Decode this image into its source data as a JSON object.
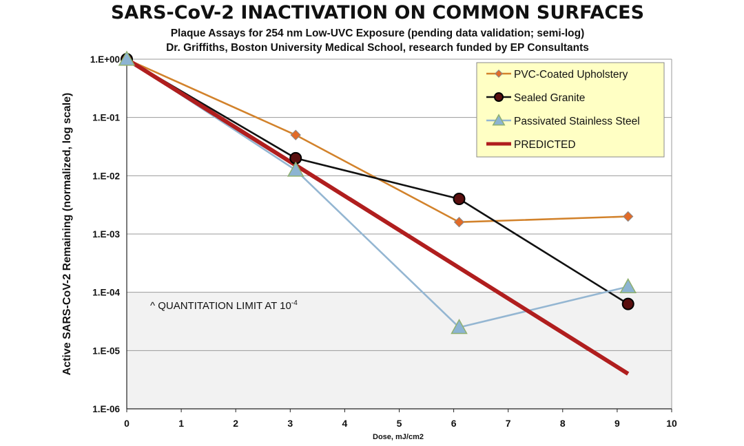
{
  "chart_data": {
    "type": "line",
    "title": "SARS-CoV-2 INACTIVATION ON COMMON SURFACES",
    "subtitle_lines": [
      "Plaque Assays for 254 nm Low-UVC Exposure (pending data validation; semi-log)",
      "Dr. Griffiths, Boston University Medical School, research funded by EP Consultants"
    ],
    "xlabel": "Dose, mJ/cm2",
    "ylabel": "Active SARS-CoV-2 Remaining (normalized, log scale)",
    "xlim": [
      0,
      10
    ],
    "ylim": [
      1e-06,
      1
    ],
    "yscale": "log",
    "grid": "horizontal",
    "legend_position": "top-right",
    "x_ticks": [
      "0",
      "1",
      "2",
      "3",
      "4",
      "5",
      "6",
      "7",
      "8",
      "9",
      "10"
    ],
    "y_ticks": [
      "1.E+00",
      "1.E-01",
      "1.E-02",
      "1.E-03",
      "1.E-04",
      "1.E-05",
      "1.E-06"
    ],
    "series": [
      {
        "name": "PVC-Coated Upholstery",
        "color": "#D2822B",
        "marker": "diamond",
        "marker_color": "#E26B28",
        "x": [
          0,
          3.1,
          6.1,
          9.2
        ],
        "y": [
          1,
          0.05,
          0.0016,
          0.002
        ]
      },
      {
        "name": "Sealed Granite",
        "color": "#111111",
        "marker": "circle",
        "marker_color": "#5A0F0F",
        "x": [
          0,
          3.1,
          6.1,
          9.2
        ],
        "y": [
          1,
          0.02,
          0.004,
          6.3e-05
        ]
      },
      {
        "name": "Passivated Stainless Steel",
        "color": "#94B6D2",
        "marker": "triangle",
        "marker_color": "#8CB4D2",
        "x": [
          0,
          3.1,
          6.1,
          9.2
        ],
        "y": [
          1,
          0.0125,
          2.5e-05,
          0.000125
        ]
      },
      {
        "name": "PREDICTED",
        "color": "#B01E1E",
        "marker": "none",
        "x": [
          0,
          9.2
        ],
        "y": [
          1,
          4e-06
        ]
      }
    ],
    "shaded_region": {
      "y_from": 1e-06,
      "y_to": 0.0001,
      "color": "#F2F2F2"
    },
    "annotation": {
      "text": "^ QUANTITATION LIMIT AT 10",
      "superscript": "-4"
    },
    "legend_bg": "#FFFFC4"
  }
}
